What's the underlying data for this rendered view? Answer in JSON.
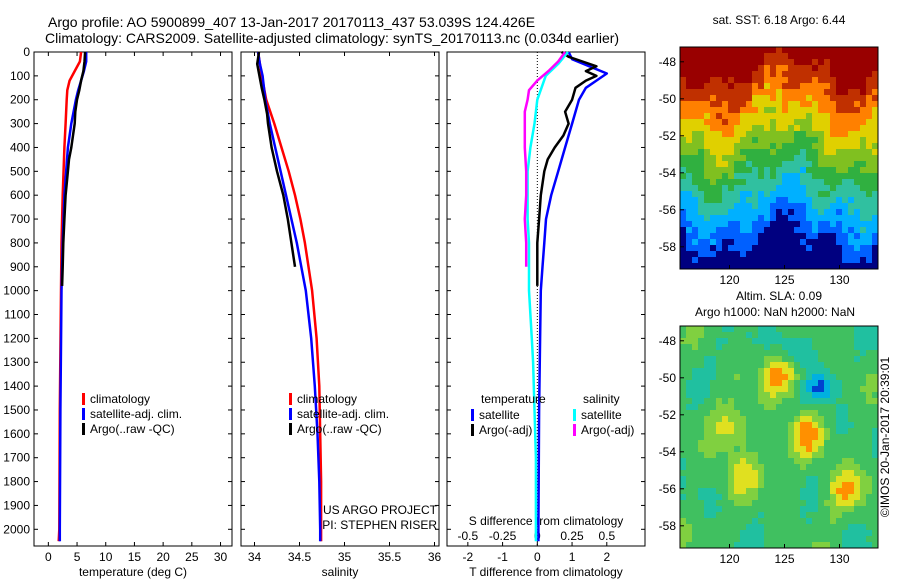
{
  "header": {
    "line1": "Argo profile: AO 5900899_407 13-Jan-2017 20170113_437 53.039S 124.426E",
    "line2": "Climatology: CARS2009. Satellite-adjusted climatology: synTS_20170113.nc (0.034d earlier)"
  },
  "colors": {
    "climatology": "#ff0000",
    "satellite": "#0000ff",
    "argo": "#000000",
    "sal_satellite": "#00ffff",
    "sal_argo": "#ff00ff"
  },
  "shared_depth_axis": {
    "ticks": [
      "0",
      "100",
      "200",
      "300",
      "400",
      "500",
      "600",
      "700",
      "800",
      "900",
      "1000",
      "1100",
      "1200",
      "1300",
      "1400",
      "1500",
      "1600",
      "1700",
      "1800",
      "1900",
      "2000"
    ]
  },
  "chart_data": [
    {
      "id": "temperature",
      "type": "line",
      "xlabel": "temperature (deg C)",
      "xlim": [
        -2.5,
        32
      ],
      "ylim": [
        0,
        2070
      ],
      "y_reversed": true,
      "xticks": [
        0,
        5,
        10,
        15,
        20,
        25,
        30
      ],
      "legend": [
        "climatology",
        "satellite-adj. clim.",
        "Argo(..raw -QC)"
      ],
      "series": [
        {
          "name": "climatology",
          "color": "#ff0000",
          "depth": [
            0,
            40,
            80,
            120,
            160,
            200,
            300,
            400,
            600,
            800,
            1000,
            1500,
            2000,
            2050
          ],
          "value": [
            5.7,
            5.5,
            4.6,
            3.7,
            3.3,
            3.2,
            3.0,
            2.8,
            2.5,
            2.3,
            2.2,
            2.0,
            1.9,
            1.8
          ]
        },
        {
          "name": "satellite-adj. clim.",
          "color": "#0000ff",
          "depth": [
            0,
            40,
            80,
            120,
            160,
            200,
            300,
            400,
            600,
            800,
            1000,
            1500,
            2000,
            2050
          ],
          "value": [
            6.6,
            6.6,
            6.2,
            5.7,
            5.2,
            4.8,
            4.0,
            3.4,
            2.8,
            2.5,
            2.3,
            2.1,
            2.0,
            2.0
          ]
        },
        {
          "name": "Argo(..raw -QC)",
          "color": "#000000",
          "depth": [
            0,
            40,
            80,
            120,
            160,
            200,
            250,
            300,
            350,
            400,
            450,
            500,
            600,
            700,
            800,
            900,
            980
          ],
          "value": [
            6.4,
            6.3,
            6.1,
            5.7,
            5.4,
            5.0,
            4.7,
            4.6,
            4.3,
            4.0,
            3.6,
            3.4,
            3.0,
            2.8,
            2.6,
            2.5,
            2.4
          ]
        }
      ]
    },
    {
      "id": "salinity",
      "type": "line",
      "xlabel": "salinity",
      "xlim": [
        33.85,
        36.05
      ],
      "ylim": [
        0,
        2070
      ],
      "y_reversed": true,
      "xticks": [
        34,
        34.5,
        35,
        35.5,
        36
      ],
      "legend": [
        "climatology",
        "satellite-adj. clim.",
        "Argo(..raw -QC)"
      ],
      "annotation_line1": "US ARGO PROJECT",
      "annotation_line2": "PI: STEPHEN RISER",
      "series": [
        {
          "name": "climatology",
          "color": "#ff0000",
          "depth": [
            0,
            50,
            100,
            200,
            300,
            400,
            500,
            600,
            700,
            800,
            900,
            1000,
            1200,
            1400,
            1600,
            1800,
            2000,
            2050
          ],
          "value": [
            34.04,
            34.06,
            34.08,
            34.13,
            34.22,
            34.3,
            34.38,
            34.45,
            34.51,
            34.56,
            34.6,
            34.64,
            34.69,
            34.72,
            34.73,
            34.74,
            34.74,
            34.74
          ]
        },
        {
          "name": "satellite-adj. clim.",
          "color": "#0000ff",
          "depth": [
            0,
            50,
            100,
            200,
            300,
            400,
            500,
            600,
            700,
            800,
            900,
            1000,
            1200,
            1400,
            1600,
            1800,
            2000,
            2050
          ],
          "value": [
            34.04,
            34.06,
            34.09,
            34.12,
            34.17,
            34.23,
            34.29,
            34.35,
            34.41,
            34.47,
            34.52,
            34.57,
            34.63,
            34.67,
            34.7,
            34.72,
            34.73,
            34.73
          ]
        },
        {
          "name": "Argo(..raw -QC)",
          "color": "#000000",
          "depth": [
            0,
            50,
            90,
            150,
            200,
            260,
            300,
            350,
            400,
            500,
            600,
            700,
            800,
            900
          ],
          "value": [
            34.05,
            34.03,
            34.05,
            34.08,
            34.11,
            34.14,
            34.15,
            34.17,
            34.19,
            34.25,
            34.32,
            34.37,
            34.41,
            34.45
          ]
        }
      ]
    },
    {
      "id": "differences",
      "type": "line",
      "xlabel": "T difference from climatology",
      "xlim": [
        -2.6,
        3.1
      ],
      "ylim": [
        0,
        2070
      ],
      "y_reversed": true,
      "xticks": [
        -2,
        -1,
        0,
        1,
        2
      ],
      "top_axis_label": "S difference from climatology",
      "top_xticks": [
        "-0.5",
        "-0.25",
        "0",
        "0.25",
        "0.5"
      ],
      "top_xtick_values": [
        -0.5,
        -0.25,
        0,
        0.25,
        0.5
      ],
      "legend_temperature_title": "temperature",
      "legend_salinity_title": "salinity",
      "legend": [
        "satellite",
        "Argo(-adj)",
        "satellite",
        "Argo(-adj)"
      ],
      "series": [
        {
          "name": "satellite",
          "color": "#0000ff",
          "scale": "T",
          "depth": [
            0,
            30,
            60,
            90,
            120,
            150,
            200,
            300,
            400,
            500,
            600,
            700,
            800,
            900,
            1000,
            1200,
            1500,
            2000,
            2050
          ],
          "value": [
            0.9,
            1.0,
            1.5,
            2.0,
            1.7,
            1.4,
            1.2,
            1.0,
            0.8,
            0.6,
            0.4,
            0.25,
            0.2,
            0.15,
            0.1,
            0.08,
            0.05,
            0.03,
            0.03
          ]
        },
        {
          "name": "Argo(-adj)",
          "color": "#000000",
          "scale": "T",
          "depth": [
            0,
            20,
            40,
            60,
            80,
            100,
            120,
            150,
            200,
            250,
            300,
            350,
            400,
            450,
            500,
            600,
            700,
            800,
            900,
            980
          ],
          "value": [
            0.7,
            0.9,
            1.3,
            1.7,
            1.4,
            1.7,
            1.4,
            1.1,
            1.0,
            0.8,
            0.9,
            0.75,
            0.5,
            0.3,
            0.2,
            0.1,
            0.05,
            0.0,
            0.0,
            0.0
          ]
        },
        {
          "name": "satellite",
          "color": "#00ffff",
          "scale": "S",
          "depth": [
            0,
            50,
            100,
            200,
            300,
            400,
            500,
            600,
            700,
            800,
            900,
            1000,
            1100,
            1200,
            1300,
            1500,
            1700,
            2000,
            2050
          ],
          "value": [
            0.22,
            0.15,
            0.06,
            0.0,
            -0.02,
            -0.05,
            -0.07,
            -0.07,
            -0.07,
            -0.06,
            -0.06,
            -0.06,
            -0.05,
            -0.04,
            -0.03,
            -0.02,
            -0.01,
            -0.01,
            -0.01
          ]
        },
        {
          "name": "Argo(-adj)",
          "color": "#ff00ff",
          "scale": "S",
          "depth": [
            0,
            40,
            80,
            120,
            160,
            200,
            250,
            300,
            400,
            500,
            600,
            700,
            800,
            900
          ],
          "value": [
            0.2,
            0.15,
            0.08,
            0.0,
            -0.06,
            -0.07,
            -0.09,
            -0.09,
            -0.09,
            -0.08,
            -0.08,
            -0.09,
            -0.08,
            -0.08
          ]
        }
      ]
    },
    {
      "id": "sst-map",
      "type": "heatmap",
      "title": "sat. SST: 6.18 Argo: 6.44",
      "xticks": [
        "120",
        "125",
        "130"
      ],
      "yticks": [
        "-48",
        "-50",
        "-52",
        "-54",
        "-56",
        "-58"
      ],
      "xlim": [
        115.5,
        133.5
      ],
      "ylim": [
        -59.2,
        -47.2
      ],
      "palette": [
        "#000080",
        "#0060ff",
        "#00b0ff",
        "#30c0a0",
        "#30b040",
        "#80c020",
        "#e0d000",
        "#ff8000",
        "#c03000",
        "#990000"
      ]
    },
    {
      "id": "sla-map",
      "type": "heatmap",
      "title": "Altim. SLA: 0.09",
      "subtitle": "Argo h1000: NaN h2000: NaN",
      "xticks": [
        "120",
        "125",
        "130"
      ],
      "yticks": [
        "-48",
        "-50",
        "-52",
        "-54",
        "-56",
        "-58"
      ],
      "xlim": [
        115.5,
        133.5
      ],
      "ylim": [
        -59.2,
        -47.2
      ],
      "palette": [
        "#0040d0",
        "#00b0e0",
        "#20c0a0",
        "#40c060",
        "#80d040",
        "#e0e020",
        "#ff9000",
        "#e04000"
      ],
      "credit": "©IMOS 20-Jan-2017 20:39:01"
    }
  ]
}
